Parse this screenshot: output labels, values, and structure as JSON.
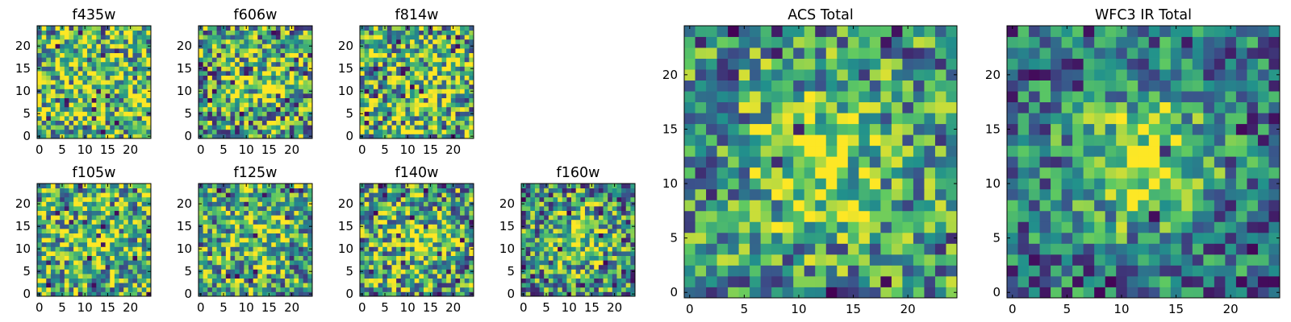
{
  "figure": {
    "background": "#ffffff"
  },
  "colormap": {
    "name": "viridis",
    "stops": [
      "#440154",
      "#3b528b",
      "#21918c",
      "#5ec962",
      "#fde725"
    ]
  },
  "chart_data": [
    {
      "type": "heatmap",
      "title": "f435w",
      "grid": "25x25",
      "xlim": [
        0,
        24
      ],
      "ylim": [
        0,
        24
      ],
      "xticks": [
        "0",
        "5",
        "10",
        "15",
        "20"
      ],
      "yticks": [
        "0",
        "5",
        "10",
        "15",
        "20"
      ],
      "center_peak": 0.05,
      "noise": 0.5,
      "mean": 0.68,
      "seed": 11
    },
    {
      "type": "heatmap",
      "title": "f606w",
      "grid": "25x25",
      "xlim": [
        0,
        24
      ],
      "ylim": [
        0,
        24
      ],
      "xticks": [
        "0",
        "5",
        "10",
        "15",
        "20"
      ],
      "yticks": [
        "0",
        "5",
        "10",
        "15",
        "20"
      ],
      "center_peak": 0.2,
      "noise": 0.5,
      "mean": 0.6,
      "seed": 23
    },
    {
      "type": "heatmap",
      "title": "f814w",
      "grid": "25x25",
      "xlim": [
        0,
        24
      ],
      "ylim": [
        0,
        24
      ],
      "xticks": [
        "0",
        "5",
        "10",
        "15",
        "20"
      ],
      "yticks": [
        "0",
        "5",
        "10",
        "15",
        "20"
      ],
      "center_peak": 0.1,
      "noise": 0.5,
      "mean": 0.64,
      "seed": 37
    },
    {
      "type": "heatmap",
      "title": "f105w",
      "grid": "25x25",
      "xlim": [
        0,
        24
      ],
      "ylim": [
        0,
        24
      ],
      "xticks": [
        "0",
        "5",
        "10",
        "15",
        "20"
      ],
      "yticks": [
        "0",
        "5",
        "10",
        "15",
        "20"
      ],
      "center_peak": 0.15,
      "noise": 0.45,
      "mean": 0.62,
      "seed": 41
    },
    {
      "type": "heatmap",
      "title": "f125w",
      "grid": "25x25",
      "xlim": [
        0,
        24
      ],
      "ylim": [
        0,
        24
      ],
      "xticks": [
        "0",
        "5",
        "10",
        "15",
        "20"
      ],
      "yticks": [
        "0",
        "5",
        "10",
        "15",
        "20"
      ],
      "center_peak": 0.15,
      "noise": 0.45,
      "mean": 0.6,
      "seed": 53
    },
    {
      "type": "heatmap",
      "title": "f140w",
      "grid": "25x25",
      "xlim": [
        0,
        24
      ],
      "ylim": [
        0,
        24
      ],
      "xticks": [
        "0",
        "5",
        "10",
        "15",
        "20"
      ],
      "yticks": [
        "0",
        "5",
        "10",
        "15",
        "20"
      ],
      "center_peak": 0.25,
      "noise": 0.45,
      "mean": 0.58,
      "seed": 67
    },
    {
      "type": "heatmap",
      "title": "f160w",
      "grid": "25x25",
      "xlim": [
        0,
        24
      ],
      "ylim": [
        0,
        24
      ],
      "xticks": [
        "0",
        "5",
        "10",
        "15",
        "20"
      ],
      "yticks": [
        "0",
        "5",
        "10",
        "15",
        "20"
      ],
      "center_peak": 0.35,
      "noise": 0.45,
      "mean": 0.5,
      "seed": 79
    },
    {
      "type": "heatmap",
      "title": "ACS Total",
      "grid": "25x25",
      "xlim": [
        0,
        24
      ],
      "ylim": [
        0,
        24
      ],
      "xticks": [
        "0",
        "5",
        "10",
        "15",
        "20"
      ],
      "yticks": [
        "0",
        "5",
        "10",
        "15",
        "20"
      ],
      "center_peak": 0.35,
      "noise": 0.4,
      "mean": 0.52,
      "seed": 97
    },
    {
      "type": "heatmap",
      "title": "WFC3 IR Total",
      "grid": "25x25",
      "xlim": [
        0,
        24
      ],
      "ylim": [
        0,
        24
      ],
      "xticks": [
        "0",
        "5",
        "10",
        "15",
        "20"
      ],
      "yticks": [
        "0",
        "5",
        "10",
        "15",
        "20"
      ],
      "center_peak": 0.55,
      "noise": 0.35,
      "mean": 0.38,
      "seed": 113
    }
  ]
}
